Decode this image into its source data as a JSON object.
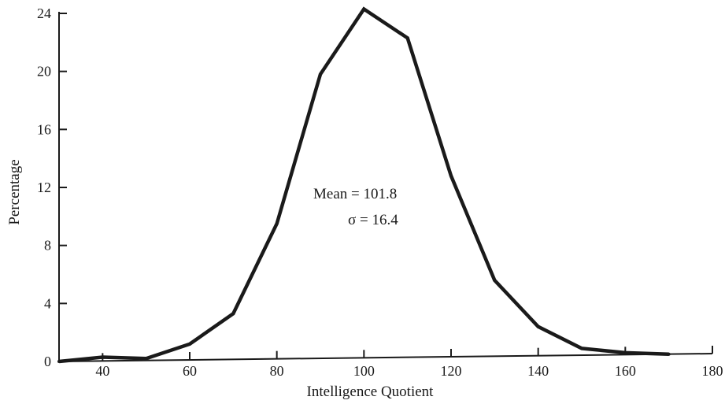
{
  "chart_data": {
    "type": "line",
    "title": "",
    "xlabel": "Intelligence Quotient",
    "ylabel": "Percentage",
    "xlim": [
      30,
      180
    ],
    "ylim": [
      0,
      24
    ],
    "x_ticks": [
      40,
      60,
      80,
      100,
      120,
      140,
      160,
      180
    ],
    "y_ticks": [
      0,
      4,
      8,
      12,
      16,
      20,
      24
    ],
    "grid": false,
    "legend": "none",
    "series": [
      {
        "x": [
          30,
          40,
          50,
          60,
          70,
          80,
          90,
          100,
          110,
          120,
          130,
          140,
          150,
          160,
          170
        ],
        "y": [
          0.0,
          0.3,
          0.2,
          1.2,
          3.3,
          9.5,
          19.8,
          24.3,
          22.3,
          12.8,
          5.6,
          2.4,
          0.9,
          0.6,
          0.5
        ],
        "color": "#1a1a1a"
      }
    ],
    "annotations": {
      "mean_text": "Mean = 101.8",
      "sigma_text": "σ = 16.4"
    }
  }
}
